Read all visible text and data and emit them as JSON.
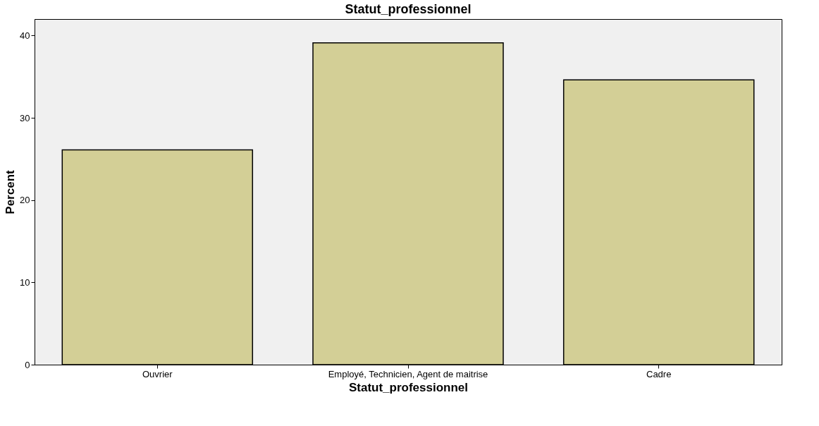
{
  "chart_data": {
    "type": "bar",
    "title": "Statut_professionnel",
    "xlabel": "Statut_professionnel",
    "ylabel": "Percent",
    "categories": [
      "Ouvrier",
      "Employé, Technicien, Agent de maitrise",
      "Cadre"
    ],
    "values": [
      26.1,
      39.1,
      34.6
    ],
    "color": "#d3cf96",
    "ylim": [
      0,
      42
    ],
    "yticks": [
      0,
      10,
      20,
      30,
      40
    ],
    "grid": false
  }
}
